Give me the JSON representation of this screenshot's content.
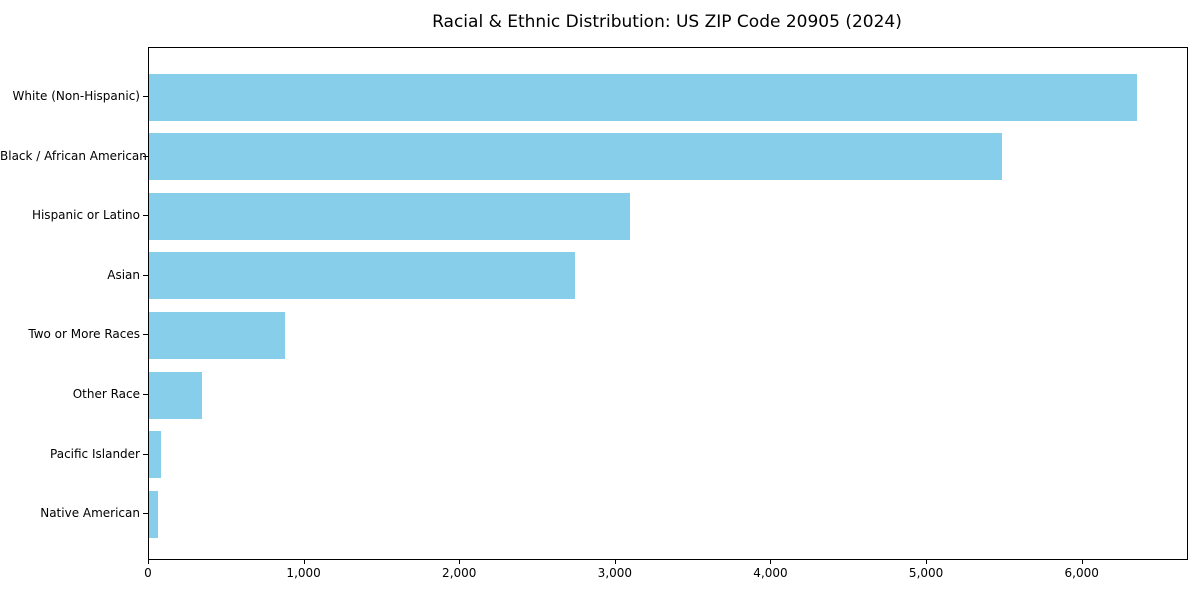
{
  "figure": {
    "title": "Racial & Ethnic Distribution: US ZIP Code 20905 (2024)"
  },
  "chart_data": {
    "type": "bar",
    "orientation": "horizontal",
    "title": "Racial & Ethnic Distribution: US ZIP Code 20905 (2024)",
    "categories": [
      "White (Non-Hispanic)",
      "Black / African American",
      "Hispanic or Latino",
      "Asian",
      "Two or More Races",
      "Other Race",
      "Pacific Islander",
      "Native American"
    ],
    "values": [
      6350,
      5480,
      3090,
      2740,
      875,
      340,
      75,
      55
    ],
    "xlabel": "",
    "ylabel": "",
    "xlim": [
      0,
      6670
    ],
    "xticks": [
      0,
      1000,
      2000,
      3000,
      4000,
      5000,
      6000
    ],
    "xtick_labels": [
      "0",
      "1,000",
      "2,000",
      "3,000",
      "4,000",
      "5,000",
      "6,000"
    ],
    "bar_color": "#87CEEB",
    "grid": false,
    "legend": "none"
  },
  "colors": {
    "bar": "#87CEEB",
    "axis": "#000000",
    "text": "#000000",
    "background": "#FFFFFF"
  }
}
